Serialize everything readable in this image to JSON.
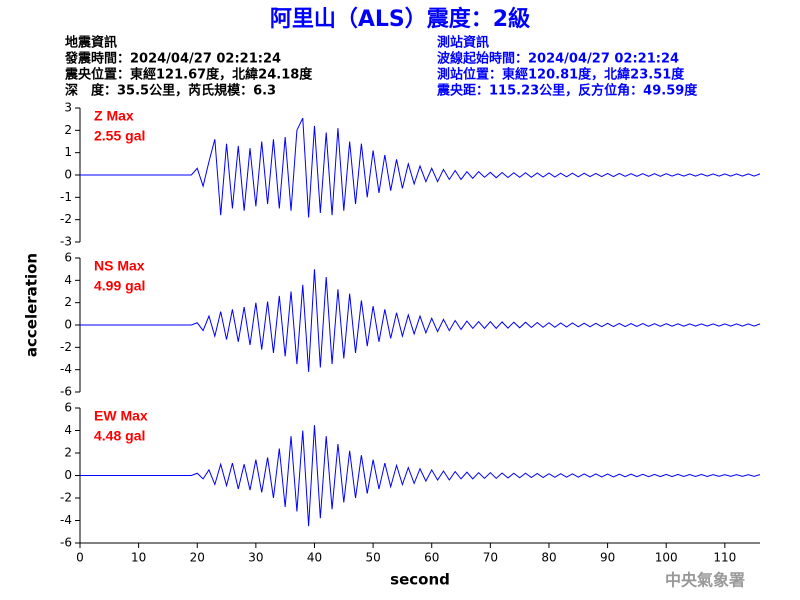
{
  "header": {
    "title": "阿里山（ALS）震度：2級",
    "left": [
      "地震資訊",
      "發震時間：2024/04/27 02:21:24",
      "震央位置：東經121.67度，北緯24.18度",
      "深　度：35.5公里，芮氏規模：6.3"
    ],
    "right": [
      "測站資訊",
      "波線起始時間：2024/04/27 02:21:24",
      "測站位置：東經120.81度，北緯23.51度",
      "震央距：115.23公里，反方位角：49.59度"
    ]
  },
  "footer": "中央氣象署",
  "chart_data": [
    {
      "type": "line",
      "annotations": [
        "Z Max",
        "2.55 gal"
      ],
      "color": "#0000ff",
      "x": [
        0,
        19,
        20,
        21,
        22,
        23,
        24,
        25,
        26,
        27,
        28,
        29,
        30,
        31,
        32,
        33,
        34,
        35,
        36,
        37,
        38,
        39,
        40,
        41,
        42,
        43,
        44,
        45,
        46,
        47,
        48,
        49,
        50,
        51,
        52,
        53,
        54,
        55,
        56,
        57,
        58,
        59,
        60,
        61,
        62,
        63,
        64,
        65,
        66,
        67,
        68,
        69,
        70,
        71,
        72,
        73,
        74,
        75,
        76,
        77,
        78,
        79,
        80,
        81,
        82,
        83,
        84,
        85,
        86,
        87,
        88,
        89,
        90,
        91,
        92,
        93,
        94,
        95,
        96,
        97,
        98,
        99,
        100,
        101,
        102,
        103,
        104,
        105,
        106,
        107,
        108,
        109,
        110,
        111,
        112,
        113,
        114,
        115,
        116
      ],
      "values": [
        0,
        0,
        0.3,
        -0.5,
        0.6,
        1.6,
        -1.8,
        1.4,
        -1.5,
        1.3,
        -1.6,
        1.2,
        -1.4,
        1.5,
        -1.3,
        1.6,
        -1.5,
        1.7,
        -1.6,
        2.0,
        2.55,
        -1.9,
        2.2,
        -1.7,
        1.9,
        -1.8,
        2.1,
        -1.6,
        1.5,
        -1.3,
        1.4,
        -1.0,
        1.1,
        -0.8,
        0.9,
        -0.7,
        0.7,
        -0.6,
        0.5,
        -0.4,
        0.4,
        -0.3,
        0.3,
        -0.3,
        0.25,
        -0.2,
        0.2,
        -0.2,
        0.15,
        -0.15,
        0.15,
        -0.1,
        0.12,
        -0.12,
        0.11,
        -0.11,
        0.1,
        -0.1,
        0.1,
        -0.1,
        0.09,
        -0.09,
        0.09,
        -0.09,
        0.08,
        -0.08,
        0.08,
        -0.08,
        0.08,
        -0.07,
        0.07,
        -0.07,
        0.07,
        -0.07,
        0.07,
        -0.06,
        0.06,
        -0.06,
        0.06,
        -0.06,
        0.06,
        -0.06,
        0.06,
        -0.05,
        0.05,
        -0.05,
        0.05,
        -0.05,
        0.05,
        -0.05,
        0.05,
        -0.05,
        0.05,
        -0.05,
        0.05,
        -0.05,
        0.05,
        -0.05,
        0.05
      ],
      "xlim": [
        0,
        116
      ],
      "ylim": [
        -3,
        3
      ],
      "yticks": [
        -3,
        -2,
        -1,
        0,
        1,
        2,
        3
      ]
    },
    {
      "type": "line",
      "annotations": [
        "NS Max",
        "4.99 gal"
      ],
      "color": "#0000ff",
      "ylabel": "acceleration",
      "x": [
        0,
        19,
        20,
        21,
        22,
        23,
        24,
        25,
        26,
        27,
        28,
        29,
        30,
        31,
        32,
        33,
        34,
        35,
        36,
        37,
        38,
        39,
        40,
        41,
        42,
        43,
        44,
        45,
        46,
        47,
        48,
        49,
        50,
        51,
        52,
        53,
        54,
        55,
        56,
        57,
        58,
        59,
        60,
        61,
        62,
        63,
        64,
        65,
        66,
        67,
        68,
        69,
        70,
        71,
        72,
        73,
        74,
        75,
        76,
        77,
        78,
        79,
        80,
        81,
        82,
        83,
        84,
        85,
        86,
        87,
        88,
        89,
        90,
        91,
        92,
        93,
        94,
        95,
        96,
        97,
        98,
        99,
        100,
        101,
        102,
        103,
        104,
        105,
        106,
        107,
        108,
        109,
        110,
        111,
        112,
        113,
        114,
        115,
        116
      ],
      "values": [
        0,
        0,
        0.2,
        -0.5,
        0.8,
        -1.0,
        1.2,
        -1.3,
        1.4,
        -1.5,
        1.6,
        -1.8,
        2.0,
        -2.2,
        2.1,
        -2.5,
        2.6,
        -2.8,
        3.0,
        -3.5,
        3.6,
        -4.2,
        4.99,
        -3.8,
        4.3,
        -3.5,
        3.2,
        -3.0,
        2.8,
        -2.5,
        2.2,
        -1.9,
        1.7,
        -1.5,
        1.4,
        -1.2,
        1.1,
        -1.0,
        0.9,
        -0.8,
        0.8,
        -0.7,
        0.6,
        -0.6,
        0.5,
        -0.5,
        0.4,
        -0.4,
        0.35,
        -0.3,
        0.3,
        -0.3,
        0.3,
        -0.3,
        0.28,
        -0.28,
        0.25,
        -0.25,
        0.25,
        -0.22,
        0.22,
        -0.2,
        0.2,
        -0.2,
        0.18,
        -0.18,
        0.18,
        -0.16,
        0.16,
        -0.16,
        0.15,
        -0.15,
        0.15,
        -0.14,
        0.14,
        -0.14,
        0.13,
        -0.13,
        0.13,
        -0.12,
        0.12,
        -0.12,
        0.12,
        -0.11,
        0.11,
        -0.11,
        0.1,
        -0.1,
        0.1,
        -0.1,
        0.1,
        -0.1,
        0.1,
        -0.1,
        0.1,
        -0.1,
        0.1,
        -0.1,
        0.1
      ],
      "xlim": [
        0,
        116
      ],
      "ylim": [
        -6,
        6
      ],
      "yticks": [
        -6,
        -4,
        -2,
        0,
        2,
        4,
        6
      ]
    },
    {
      "type": "line",
      "annotations": [
        "EW Max",
        "4.48 gal"
      ],
      "color": "#0000ff",
      "xlabel": "second",
      "x": [
        0,
        19,
        20,
        21,
        22,
        23,
        24,
        25,
        26,
        27,
        28,
        29,
        30,
        31,
        32,
        33,
        34,
        35,
        36,
        37,
        38,
        39,
        40,
        41,
        42,
        43,
        44,
        45,
        46,
        47,
        48,
        49,
        50,
        51,
        52,
        53,
        54,
        55,
        56,
        57,
        58,
        59,
        60,
        61,
        62,
        63,
        64,
        65,
        66,
        67,
        68,
        69,
        70,
        71,
        72,
        73,
        74,
        75,
        76,
        77,
        78,
        79,
        80,
        81,
        82,
        83,
        84,
        85,
        86,
        87,
        88,
        89,
        90,
        91,
        92,
        93,
        94,
        95,
        96,
        97,
        98,
        99,
        100,
        101,
        102,
        103,
        104,
        105,
        106,
        107,
        108,
        109,
        110,
        111,
        112,
        113,
        114,
        115,
        116
      ],
      "values": [
        0,
        0,
        0.2,
        -0.3,
        0.5,
        -0.8,
        1.0,
        -0.9,
        1.1,
        -1.2,
        1.0,
        -1.3,
        1.4,
        -1.5,
        1.6,
        -2.0,
        2.4,
        -2.8,
        3.5,
        -3.2,
        4.0,
        -4.5,
        4.48,
        -3.8,
        3.5,
        -3.0,
        2.8,
        -2.4,
        2.2,
        -2.0,
        1.8,
        -1.6,
        1.4,
        -1.2,
        1.1,
        -1.0,
        0.9,
        -0.8,
        0.7,
        -0.7,
        0.6,
        -0.5,
        0.5,
        -0.4,
        0.4,
        -0.4,
        0.35,
        -0.3,
        0.3,
        -0.3,
        0.25,
        -0.25,
        0.25,
        -0.25,
        0.22,
        -0.22,
        0.2,
        -0.2,
        0.2,
        -0.18,
        0.18,
        -0.18,
        0.16,
        -0.16,
        0.16,
        -0.15,
        0.15,
        -0.15,
        0.14,
        -0.14,
        0.14,
        -0.13,
        0.13,
        -0.13,
        0.12,
        -0.12,
        0.12,
        -0.11,
        0.11,
        -0.11,
        0.1,
        -0.1,
        0.1,
        -0.1,
        0.1,
        -0.09,
        0.09,
        -0.09,
        0.09,
        -0.09,
        0.08,
        -0.08,
        0.08,
        -0.08,
        0.08,
        -0.08,
        0.08,
        -0.08,
        0.08
      ],
      "xlim": [
        0,
        116
      ],
      "ylim": [
        -6,
        6
      ],
      "yticks": [
        -6,
        -4,
        -2,
        0,
        2,
        4,
        6
      ],
      "xticks": [
        0,
        10,
        20,
        30,
        40,
        50,
        60,
        70,
        80,
        90,
        100,
        110
      ]
    }
  ]
}
